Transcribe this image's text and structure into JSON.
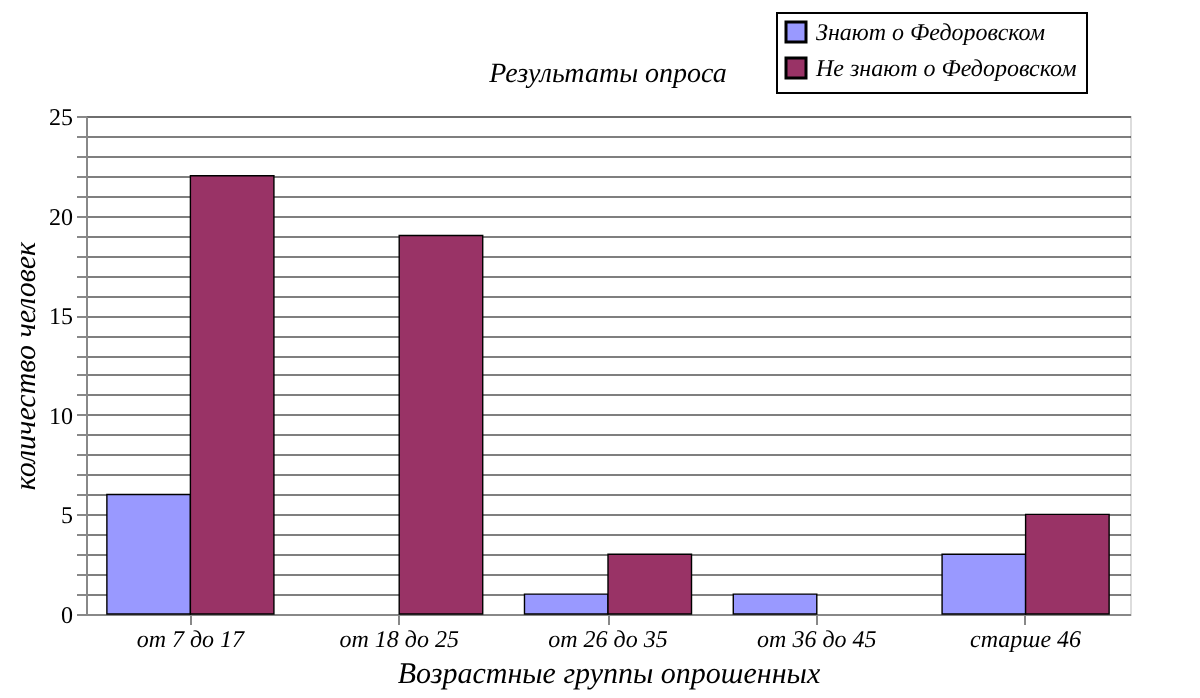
{
  "chart_data": {
    "type": "bar",
    "title": "Результаты опроса",
    "xlabel": "Возрастные группы опрошенных",
    "ylabel": "количество человек",
    "categories": [
      "от 7 до 17",
      "от 18 до 25",
      "от 26 до 35",
      "от 36 до 45",
      "старше 46"
    ],
    "series": [
      {
        "name": "Знают о Федоровском",
        "color": "#9999ff",
        "values": [
          6,
          0,
          1,
          1,
          3
        ]
      },
      {
        "name": "Не знают о Федоровском",
        "color": "#993366",
        "values": [
          22,
          19,
          3,
          0,
          5
        ]
      }
    ],
    "ylim": [
      0,
      25
    ],
    "yticks": [
      0,
      {
        "value": 1,
        "label": null
      },
      {
        "value": 2,
        "label": null
      },
      {
        "value": 3,
        "label": null
      },
      {
        "value": 4,
        "label": null
      },
      5,
      {
        "value": 6,
        "label": null
      },
      {
        "value": 7,
        "label": null
      },
      {
        "value": 8,
        "label": null
      },
      {
        "value": 9,
        "label": null
      },
      10,
      {
        "value": 11,
        "label": null
      },
      {
        "value": 12,
        "label": null
      },
      {
        "value": 13,
        "label": null
      },
      {
        "value": 14,
        "label": null
      },
      15,
      {
        "value": 16,
        "label": null
      },
      {
        "value": 17,
        "label": null
      },
      {
        "value": 18,
        "label": null
      },
      {
        "value": 19,
        "label": null
      },
      20,
      {
        "value": 21,
        "label": null
      },
      {
        "value": 22,
        "label": null
      },
      {
        "value": 23,
        "label": null
      },
      {
        "value": 24,
        "label": null
      },
      25
    ],
    "grid": "y",
    "legend": "top right"
  }
}
